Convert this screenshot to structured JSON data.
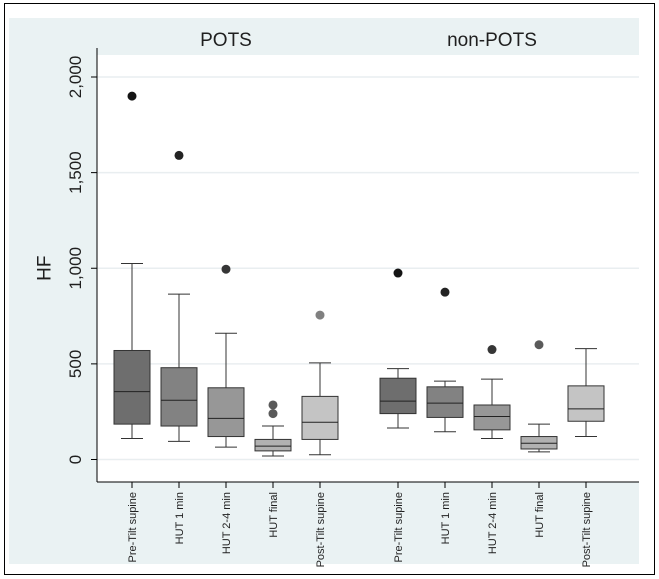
{
  "chart_data": {
    "type": "boxplot",
    "ylabel": "HF",
    "ylim": [
      -100,
      2150
    ],
    "yticks": [
      0,
      500,
      1000,
      1500,
      2000
    ],
    "ytick_labels": [
      "0",
      "500",
      "1,000",
      "1,500",
      "2,000"
    ],
    "grid": true,
    "categories": [
      "Pre-Tilt supine",
      "HUT 1 min",
      "HUT 2-4 min",
      "HUT final",
      "Post-Tilt supine"
    ],
    "colors": [
      "#6e6e6e",
      "#828282",
      "#979797",
      "#b1b1b1",
      "#c4c4c4"
    ],
    "outlier_colors": [
      "#141414",
      "#232323",
      "#363636",
      "#5a5a5a",
      "#808080"
    ],
    "groups": [
      {
        "name": "POTS",
        "boxes": [
          {
            "category": "Pre-Tilt supine",
            "min": 110,
            "q1": 185,
            "median": 355,
            "q3": 570,
            "max": 1025,
            "outliers": [
              1900
            ]
          },
          {
            "category": "HUT 1 min",
            "min": 95,
            "q1": 175,
            "median": 310,
            "q3": 480,
            "max": 865,
            "outliers": [
              1590
            ]
          },
          {
            "category": "HUT 2-4 min",
            "min": 65,
            "q1": 120,
            "median": 215,
            "q3": 375,
            "max": 660,
            "outliers": [
              995
            ]
          },
          {
            "category": "HUT final",
            "min": 18,
            "q1": 45,
            "median": 70,
            "q3": 105,
            "max": 175,
            "outliers": [
              240,
              285
            ]
          },
          {
            "category": "Post-Tilt supine",
            "min": 25,
            "q1": 105,
            "median": 195,
            "q3": 330,
            "max": 505,
            "outliers": [
              755
            ]
          }
        ]
      },
      {
        "name": "non-POTS",
        "boxes": [
          {
            "category": "Pre-Tilt supine",
            "min": 165,
            "q1": 240,
            "median": 305,
            "q3": 425,
            "max": 475,
            "outliers": [
              975
            ]
          },
          {
            "category": "HUT 1 min",
            "min": 145,
            "q1": 220,
            "median": 295,
            "q3": 380,
            "max": 410,
            "outliers": [
              875
            ]
          },
          {
            "category": "HUT 2-4 min",
            "min": 110,
            "q1": 155,
            "median": 225,
            "q3": 285,
            "max": 420,
            "outliers": [
              575
            ]
          },
          {
            "category": "HUT final",
            "min": 40,
            "q1": 55,
            "median": 85,
            "q3": 120,
            "max": 185,
            "outliers": [
              600
            ]
          },
          {
            "category": "Post-Tilt supine",
            "min": 120,
            "q1": 200,
            "median": 265,
            "q3": 385,
            "max": 580,
            "outliers": []
          }
        ]
      }
    ]
  }
}
